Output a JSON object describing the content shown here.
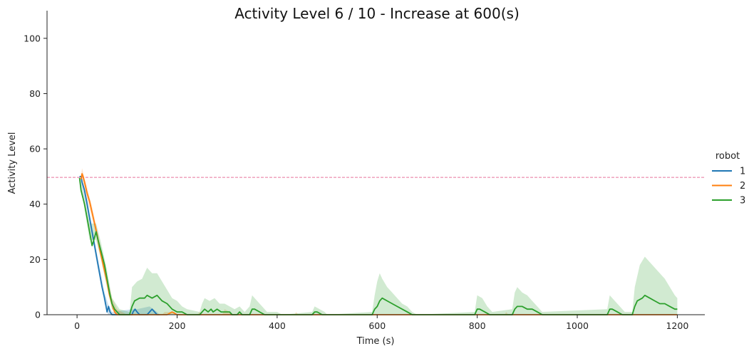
{
  "chart_data": {
    "type": "line",
    "title": "Activity Level 6 / 10 - Increase at 600(s)",
    "xlabel": "Time (s)",
    "ylabel": "Activity Level",
    "xlim": [
      -60,
      1255
    ],
    "ylim": [
      0,
      110
    ],
    "xticks": [
      0,
      200,
      400,
      600,
      800,
      1000,
      1200
    ],
    "yticks": [
      0,
      20,
      40,
      60,
      80,
      100
    ],
    "grid": false,
    "legend": {
      "title": "robot",
      "placement": "right",
      "entries": [
        "1",
        "2",
        "3"
      ]
    },
    "reference_line": {
      "y": 49.7,
      "color": "#e8749a",
      "style": "dashed"
    },
    "colors": {
      "1": "#1f77b4",
      "2": "#ff7f0e",
      "3": "#2ca02c"
    },
    "series": [
      {
        "name": "1",
        "color": "#1f77b4",
        "points": [
          [
            5,
            50
          ],
          [
            8,
            50
          ],
          [
            10,
            48
          ],
          [
            15,
            45
          ],
          [
            20,
            40
          ],
          [
            25,
            35
          ],
          [
            30,
            30
          ],
          [
            35,
            25
          ],
          [
            40,
            20
          ],
          [
            45,
            15
          ],
          [
            50,
            10
          ],
          [
            55,
            6
          ],
          [
            58,
            3
          ],
          [
            60,
            1
          ],
          [
            63,
            3
          ],
          [
            66,
            1
          ],
          [
            70,
            0
          ],
          [
            110,
            0
          ],
          [
            112,
            1
          ],
          [
            116,
            2
          ],
          [
            120,
            1
          ],
          [
            125,
            0
          ],
          [
            140,
            0
          ],
          [
            145,
            1
          ],
          [
            150,
            2
          ],
          [
            155,
            1
          ],
          [
            160,
            0
          ],
          [
            165,
            0
          ]
        ],
        "band": [
          [
            5,
            50,
            50
          ],
          [
            20,
            38,
            42
          ],
          [
            40,
            18,
            22
          ],
          [
            55,
            4,
            8
          ],
          [
            62,
            0,
            4
          ],
          [
            70,
            0,
            1
          ],
          [
            110,
            0,
            2
          ],
          [
            120,
            0,
            2
          ],
          [
            145,
            0,
            3
          ],
          [
            160,
            0,
            1
          ],
          [
            165,
            0,
            0
          ]
        ]
      },
      {
        "name": "2",
        "color": "#ff7f0e",
        "points": [
          [
            8,
            49
          ],
          [
            10,
            51
          ],
          [
            12,
            50
          ],
          [
            15,
            48
          ],
          [
            20,
            44
          ],
          [
            25,
            41
          ],
          [
            30,
            37
          ],
          [
            35,
            33
          ],
          [
            40,
            29
          ],
          [
            45,
            24
          ],
          [
            50,
            20
          ],
          [
            55,
            16
          ],
          [
            60,
            12
          ],
          [
            65,
            7
          ],
          [
            70,
            4
          ],
          [
            75,
            1
          ],
          [
            80,
            0
          ],
          [
            180,
            0
          ],
          [
            190,
            1
          ],
          [
            200,
            0
          ],
          [
            1200,
            0
          ]
        ],
        "band": [
          [
            8,
            48,
            50
          ],
          [
            10,
            49,
            53
          ],
          [
            20,
            42,
            46
          ],
          [
            30,
            35,
            39
          ],
          [
            40,
            27,
            31
          ],
          [
            50,
            18,
            22
          ],
          [
            60,
            10,
            14
          ],
          [
            70,
            2,
            6
          ],
          [
            80,
            0,
            2
          ],
          [
            100,
            0,
            0
          ],
          [
            170,
            0,
            0
          ],
          [
            175,
            0,
            1
          ],
          [
            195,
            0,
            1
          ],
          [
            200,
            0,
            0
          ],
          [
            240,
            0,
            0
          ],
          [
            245,
            0,
            1
          ],
          [
            250,
            0,
            0
          ],
          [
            290,
            0,
            0
          ],
          [
            295,
            0,
            2
          ],
          [
            305,
            0,
            1
          ],
          [
            310,
            0,
            0
          ],
          [
            435,
            0,
            0
          ],
          [
            438,
            0,
            1
          ],
          [
            442,
            0,
            0
          ],
          [
            855,
            0,
            0
          ],
          [
            858,
            0,
            1
          ],
          [
            862,
            0,
            0
          ],
          [
            1200,
            0,
            0
          ]
        ]
      },
      {
        "name": "3",
        "color": "#2ca02c",
        "points": [
          [
            5,
            49.5
          ],
          [
            8,
            45
          ],
          [
            15,
            40
          ],
          [
            20,
            35
          ],
          [
            25,
            30
          ],
          [
            30,
            25
          ],
          [
            35,
            28
          ],
          [
            38,
            30
          ],
          [
            42,
            27
          ],
          [
            48,
            23
          ],
          [
            55,
            18
          ],
          [
            60,
            13
          ],
          [
            65,
            8
          ],
          [
            70,
            4
          ],
          [
            75,
            2
          ],
          [
            80,
            1
          ],
          [
            85,
            0
          ],
          [
            105,
            0
          ],
          [
            110,
            3
          ],
          [
            115,
            5
          ],
          [
            125,
            6
          ],
          [
            135,
            6
          ],
          [
            140,
            7
          ],
          [
            150,
            6
          ],
          [
            160,
            7
          ],
          [
            170,
            5
          ],
          [
            180,
            4
          ],
          [
            190,
            2
          ],
          [
            200,
            1
          ],
          [
            210,
            1
          ],
          [
            220,
            0
          ],
          [
            245,
            0
          ],
          [
            250,
            1
          ],
          [
            255,
            2
          ],
          [
            262,
            1
          ],
          [
            268,
            2
          ],
          [
            272,
            1
          ],
          [
            280,
            2
          ],
          [
            288,
            1
          ],
          [
            295,
            1
          ],
          [
            305,
            1
          ],
          [
            310,
            0
          ],
          [
            320,
            0
          ],
          [
            325,
            1
          ],
          [
            330,
            0
          ],
          [
            345,
            0
          ],
          [
            350,
            2
          ],
          [
            355,
            2
          ],
          [
            365,
            1
          ],
          [
            375,
            0
          ],
          [
            400,
            0
          ],
          [
            410,
            0
          ],
          [
            440,
            0
          ],
          [
            470,
            0
          ],
          [
            475,
            1
          ],
          [
            480,
            1
          ],
          [
            490,
            0
          ],
          [
            500,
            0
          ],
          [
            590,
            0
          ],
          [
            595,
            2
          ],
          [
            600,
            3
          ],
          [
            605,
            5
          ],
          [
            610,
            6
          ],
          [
            620,
            5
          ],
          [
            630,
            4
          ],
          [
            640,
            3
          ],
          [
            650,
            2
          ],
          [
            660,
            1
          ],
          [
            670,
            0
          ],
          [
            680,
            0
          ],
          [
            795,
            0
          ],
          [
            800,
            2
          ],
          [
            805,
            2
          ],
          [
            815,
            1
          ],
          [
            825,
            0
          ],
          [
            870,
            0
          ],
          [
            875,
            2
          ],
          [
            880,
            3
          ],
          [
            890,
            3
          ],
          [
            900,
            2
          ],
          [
            910,
            2
          ],
          [
            920,
            1
          ],
          [
            930,
            0
          ],
          [
            1060,
            0
          ],
          [
            1065,
            2
          ],
          [
            1070,
            2
          ],
          [
            1080,
            1
          ],
          [
            1090,
            0
          ],
          [
            1110,
            0
          ],
          [
            1115,
            3
          ],
          [
            1120,
            5
          ],
          [
            1130,
            6
          ],
          [
            1135,
            7
          ],
          [
            1145,
            6
          ],
          [
            1155,
            5
          ],
          [
            1165,
            4
          ],
          [
            1175,
            4
          ],
          [
            1185,
            3
          ],
          [
            1195,
            2
          ],
          [
            1200,
            2
          ]
        ],
        "band": [
          [
            5,
            49,
            50
          ],
          [
            15,
            38,
            42
          ],
          [
            25,
            27,
            33
          ],
          [
            38,
            27,
            33
          ],
          [
            48,
            20,
            26
          ],
          [
            60,
            10,
            16
          ],
          [
            70,
            2,
            6
          ],
          [
            85,
            0,
            2
          ],
          [
            105,
            0,
            1
          ],
          [
            110,
            0,
            10
          ],
          [
            120,
            0,
            12
          ],
          [
            130,
            0,
            13
          ],
          [
            140,
            0,
            17
          ],
          [
            150,
            0,
            15
          ],
          [
            160,
            0,
            15
          ],
          [
            170,
            0,
            12
          ],
          [
            180,
            0,
            9
          ],
          [
            190,
            0,
            6
          ],
          [
            200,
            0,
            5
          ],
          [
            210,
            0,
            3
          ],
          [
            220,
            0,
            2
          ],
          [
            245,
            0,
            1
          ],
          [
            250,
            0,
            4
          ],
          [
            255,
            0,
            6
          ],
          [
            265,
            0,
            5
          ],
          [
            275,
            0,
            6
          ],
          [
            285,
            0,
            4
          ],
          [
            295,
            0,
            4
          ],
          [
            305,
            0,
            3
          ],
          [
            315,
            0,
            2
          ],
          [
            325,
            0,
            3
          ],
          [
            335,
            0,
            1
          ],
          [
            345,
            0,
            3
          ],
          [
            350,
            0,
            7
          ],
          [
            360,
            0,
            5
          ],
          [
            370,
            0,
            3
          ],
          [
            380,
            0,
            1
          ],
          [
            400,
            0,
            1
          ],
          [
            410,
            0,
            0
          ],
          [
            470,
            0,
            1
          ],
          [
            475,
            0,
            3
          ],
          [
            485,
            0,
            2
          ],
          [
            495,
            0,
            1
          ],
          [
            500,
            0,
            0
          ],
          [
            590,
            0,
            1
          ],
          [
            595,
            0,
            7
          ],
          [
            600,
            0,
            12
          ],
          [
            605,
            0,
            15
          ],
          [
            610,
            0,
            13
          ],
          [
            620,
            0,
            10
          ],
          [
            630,
            0,
            8
          ],
          [
            640,
            0,
            6
          ],
          [
            650,
            0,
            4
          ],
          [
            660,
            0,
            3
          ],
          [
            670,
            0,
            1
          ],
          [
            680,
            0,
            0
          ],
          [
            795,
            0,
            1
          ],
          [
            800,
            0,
            7
          ],
          [
            810,
            0,
            6
          ],
          [
            820,
            0,
            3
          ],
          [
            830,
            0,
            1
          ],
          [
            870,
            0,
            2
          ],
          [
            875,
            0,
            8
          ],
          [
            880,
            0,
            10
          ],
          [
            890,
            0,
            8
          ],
          [
            900,
            0,
            7
          ],
          [
            910,
            0,
            5
          ],
          [
            920,
            0,
            3
          ],
          [
            930,
            0,
            1
          ],
          [
            1060,
            0,
            2
          ],
          [
            1065,
            0,
            7
          ],
          [
            1075,
            0,
            5
          ],
          [
            1085,
            0,
            3
          ],
          [
            1095,
            0,
            1
          ],
          [
            1110,
            0,
            1
          ],
          [
            1115,
            0,
            10
          ],
          [
            1125,
            0,
            18
          ],
          [
            1135,
            0,
            21
          ],
          [
            1145,
            0,
            19
          ],
          [
            1155,
            0,
            17
          ],
          [
            1165,
            0,
            15
          ],
          [
            1175,
            0,
            13
          ],
          [
            1185,
            0,
            10
          ],
          [
            1195,
            0,
            7
          ],
          [
            1200,
            0,
            6
          ]
        ]
      }
    ]
  }
}
